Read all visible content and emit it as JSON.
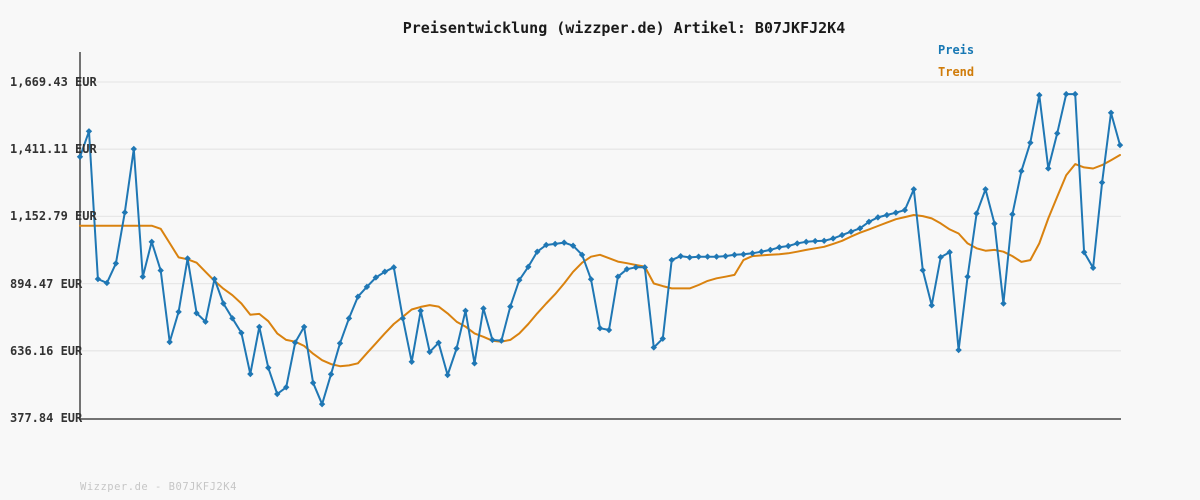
{
  "title": "Preisentwicklung (wizzper.de) Artikel: B07JKFJ2K4",
  "watermark": "Wizzper.de - B07JKFJ2K4",
  "legend": {
    "items": [
      {
        "label": "Preis",
        "color": "#1878b4"
      },
      {
        "label": "Trend",
        "color": "#d07c0a"
      }
    ],
    "position": "top-right"
  },
  "colors": {
    "background": "#f8f8f8",
    "preis_line": "#1f77b4",
    "trend_line": "#d9820f",
    "grid_line": "#e7e7e7",
    "axis_line": "#737373",
    "tick_text": "#333333",
    "title_text": "#1a1a1a",
    "watermark_text": "#c6c6c6"
  },
  "chart_data": {
    "type": "line",
    "title": "Preisentwicklung (wizzper.de) Artikel: B07JKFJ2K4",
    "xlabel": "",
    "ylabel": "",
    "grid": true,
    "legend_position": "top-right",
    "x_axis": {
      "tick_labels": [],
      "note": "no x tick labels shown"
    },
    "y_axis": {
      "unit": "EUR",
      "tick_labels": [
        "1,669.43 EUR",
        "1,411.11 EUR",
        "1,152.79 EUR",
        "894.47 EUR",
        "636.16 EUR",
        "377.84 EUR"
      ],
      "tick_values": [
        1669.43,
        1411.11,
        1152.79,
        894.47,
        636.16,
        377.84
      ],
      "ylim": [
        377.84,
        1669.43
      ]
    },
    "series": [
      {
        "name": "Preis",
        "color": "#1f77b4",
        "marker": "diamond",
        "values": [
          1382,
          1480,
          912,
          897,
          972,
          1168,
          1412,
          921,
          1055,
          945,
          670,
          786,
          991,
          781,
          748,
          912,
          818,
          761,
          705,
          547,
          728,
          571,
          470,
          496,
          668,
          728,
          513,
          431,
          546,
          665,
          761,
          844,
          882,
          918,
          940,
          957,
          761,
          594,
          790,
          632,
          667,
          543,
          645,
          790,
          588,
          799,
          678,
          675,
          806,
          908,
          959,
          1017,
          1043,
          1047,
          1052,
          1040,
          1005,
          911,
          723,
          716,
          921,
          950,
          957,
          957,
          649,
          683,
          985,
          1000,
          995,
          998,
          998,
          998,
          1000,
          1005,
          1007,
          1011,
          1017,
          1024,
          1034,
          1039,
          1049,
          1055,
          1058,
          1059,
          1068,
          1081,
          1094,
          1107,
          1132,
          1149,
          1158,
          1167,
          1177,
          1257,
          946,
          811,
          996,
          1015,
          639,
          921,
          1164,
          1257,
          1125,
          818,
          1161,
          1327,
          1436,
          1619,
          1337,
          1472,
          1623,
          1623,
          1015,
          955,
          1283,
          1551,
          1427
        ]
      },
      {
        "name": "Trend",
        "color": "#d9820f",
        "marker": "none",
        "values": [
          1117,
          1117,
          1117,
          1117,
          1117,
          1117,
          1117,
          1117,
          1117,
          1105,
          1050,
          995,
          988,
          975,
          940,
          905,
          875,
          850,
          818,
          775,
          778,
          750,
          703,
          678,
          671,
          655,
          625,
          600,
          585,
          577,
          580,
          588,
          627,
          665,
          703,
          739,
          767,
          795,
          805,
          812,
          806,
          780,
          748,
          729,
          703,
          690,
          675,
          671,
          678,
          703,
          739,
          780,
          818,
          854,
          895,
          940,
          975,
          998,
          1005,
          992,
          979,
          973,
          966,
          960,
          895,
          885,
          876,
          876,
          876,
          889,
          905,
          915,
          921,
          928,
          985,
          1000,
          1003,
          1005,
          1007,
          1011,
          1017,
          1024,
          1030,
          1036,
          1047,
          1059,
          1075,
          1090,
          1103,
          1116,
          1129,
          1142,
          1150,
          1158,
          1154,
          1145,
          1126,
          1103,
          1087,
          1049,
          1030,
          1021,
          1024,
          1017,
          1000,
          978,
          985,
          1049,
          1145,
          1228,
          1311,
          1354,
          1341,
          1337,
          1350,
          1369,
          1389
        ]
      }
    ]
  }
}
